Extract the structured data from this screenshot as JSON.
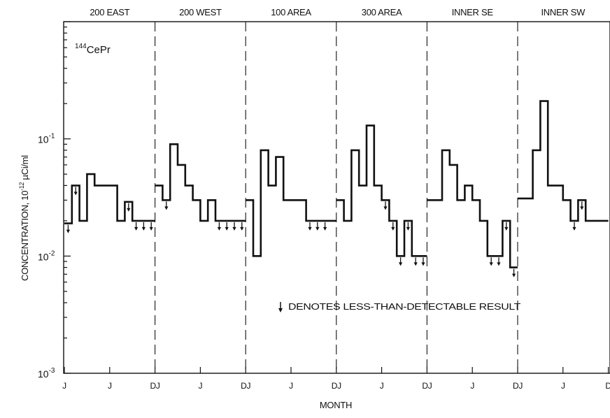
{
  "chart_data": {
    "type": "line",
    "step": true,
    "isotope": {
      "mass": "144",
      "symbol": "CePr"
    },
    "ylabel": "CONCENTRATION, 10",
    "ylabel_exp": "-12",
    "ylabel_unit": " µCi/ml",
    "xlabel": "MONTH",
    "y_scale": "log",
    "ylim": [
      0.001,
      1
    ],
    "y_ticks": [
      {
        "base": "10",
        "exp": "-1",
        "value": 0.1
      },
      {
        "base": "10",
        "exp": "-2",
        "value": 0.01
      },
      {
        "base": "10",
        "exp": "-3",
        "value": 0.001
      }
    ],
    "x_tick_labels": [
      "J",
      "J",
      "DJ",
      "J",
      "DJ",
      "J",
      "DJ",
      "J",
      "DJ",
      "J",
      "DJ",
      "J",
      "D"
    ],
    "legend_note": "DENOTES LESS-THAN-DETECTABLE RESULT",
    "panels": [
      {
        "name": "200 EAST",
        "values": [
          0.019,
          0.04,
          0.02,
          0.05,
          0.04,
          0.04,
          0.04,
          0.02,
          0.029,
          0.02,
          0.02,
          0.02
        ],
        "less_than": [
          true,
          true,
          false,
          false,
          false,
          false,
          false,
          false,
          true,
          true,
          true,
          true
        ]
      },
      {
        "name": "200 WEST",
        "values": [
          0.04,
          0.03,
          0.09,
          0.06,
          0.04,
          0.03,
          0.02,
          0.03,
          0.02,
          0.02,
          0.02,
          0.02
        ],
        "less_than": [
          false,
          true,
          false,
          false,
          false,
          false,
          false,
          false,
          true,
          true,
          true,
          true
        ]
      },
      {
        "name": "100 AREA",
        "values": [
          0.03,
          0.01,
          0.08,
          0.04,
          0.07,
          0.03,
          0.03,
          0.03,
          0.02,
          0.02,
          0.02,
          0.02
        ],
        "less_than": [
          false,
          false,
          false,
          false,
          false,
          false,
          false,
          false,
          true,
          true,
          true,
          false
        ]
      },
      {
        "name": "300 AREA",
        "values": [
          0.03,
          0.02,
          0.08,
          0.04,
          0.13,
          0.04,
          0.03,
          0.02,
          0.01,
          0.02,
          0.01,
          0.01
        ],
        "less_than": [
          false,
          false,
          false,
          false,
          false,
          false,
          true,
          true,
          true,
          true,
          true,
          true
        ]
      },
      {
        "name": "INNER SE",
        "values": [
          0.03,
          0.03,
          0.08,
          0.06,
          0.03,
          0.04,
          0.03,
          0.02,
          0.01,
          0.01,
          0.02,
          0.008
        ],
        "less_than": [
          false,
          false,
          false,
          false,
          false,
          false,
          false,
          false,
          true,
          true,
          true,
          true
        ]
      },
      {
        "name": "INNER SW",
        "values": [
          0.031,
          0.031,
          0.08,
          0.21,
          0.04,
          0.04,
          0.03,
          0.02,
          0.03,
          0.02,
          0.02,
          0.02
        ],
        "less_than": [
          false,
          false,
          false,
          false,
          false,
          false,
          false,
          true,
          true,
          false,
          false,
          false
        ]
      }
    ]
  }
}
